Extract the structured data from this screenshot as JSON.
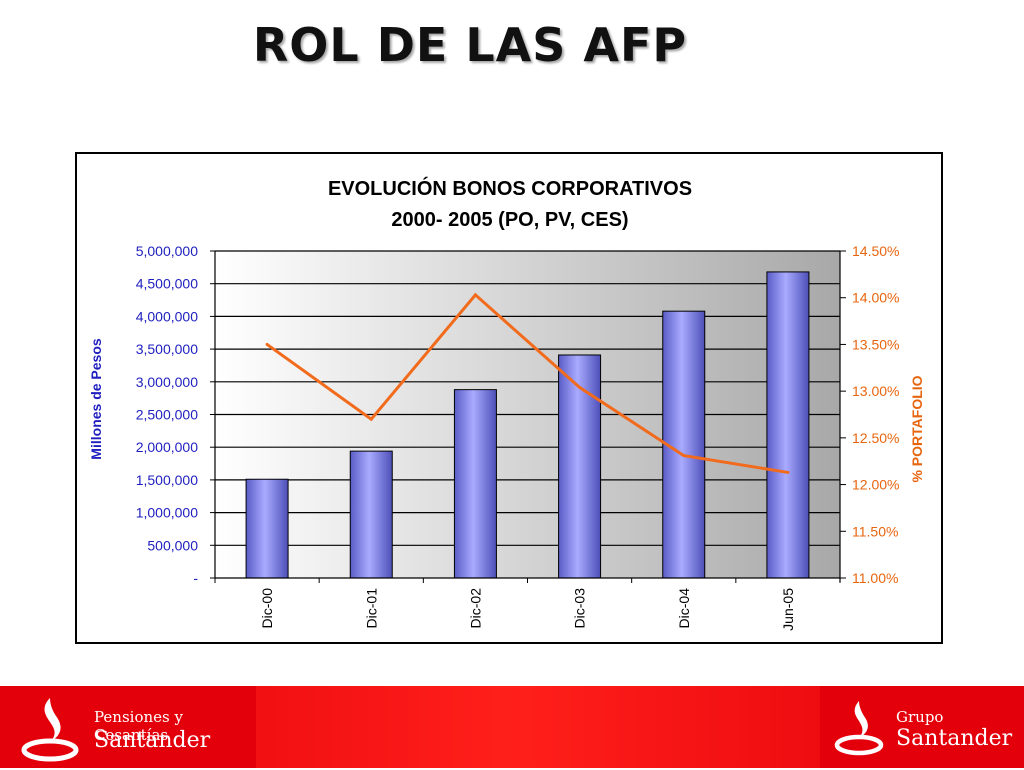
{
  "slide": {
    "title": "ROL DE LAS AFP"
  },
  "chart_data": {
    "type": "bar",
    "title": "EVOLUCIÓN BONOS CORPORATIVOS",
    "subtitle": "2000- 2005 (PO, PV, CES)",
    "categories": [
      "Dic-00",
      "Dic-01",
      "Dic-02",
      "Dic-03",
      "Dic-04",
      "Jun-05"
    ],
    "series": [
      {
        "type": "bar",
        "axis": "left",
        "values": [
          1510000,
          1940000,
          2880000,
          3410000,
          4080000,
          4680000
        ]
      },
      {
        "type": "line",
        "axis": "right",
        "values": [
          0.135,
          0.127,
          0.1403,
          0.1304,
          0.1231,
          0.1213
        ]
      }
    ],
    "ylabel": "Millones de Pesos",
    "y2label": "% PORTAFOLIO",
    "ylim": [
      0,
      5000000
    ],
    "y2lim": [
      0.11,
      0.145
    ],
    "yticks": [
      "-",
      "500,000",
      "1,000,000",
      "1,500,000",
      "2,000,000",
      "2,500,000",
      "3,000,000",
      "3,500,000",
      "4,000,000",
      "4,500,000",
      "5,000,000"
    ],
    "y2ticks": [
      "11.00%",
      "11.50%",
      "12.00%",
      "12.50%",
      "13.00%",
      "13.50%",
      "14.00%",
      "14.50%"
    ],
    "grid": true,
    "legend": "none",
    "colors": {
      "bar": "#8f91f0",
      "line": "#f26b1d",
      "left_axis_text": "#1f1fbf",
      "right_axis_text": "#e8650f"
    }
  },
  "footer": {
    "left_brand_line1": "Pensiones y Cesantías",
    "left_brand_line2": "Santander",
    "right_brand_line1": "Grupo",
    "right_brand_line2": "Santander",
    "left_logo_icon": "santander-flame-icon",
    "right_logo_icon": "santander-flame-icon"
  }
}
